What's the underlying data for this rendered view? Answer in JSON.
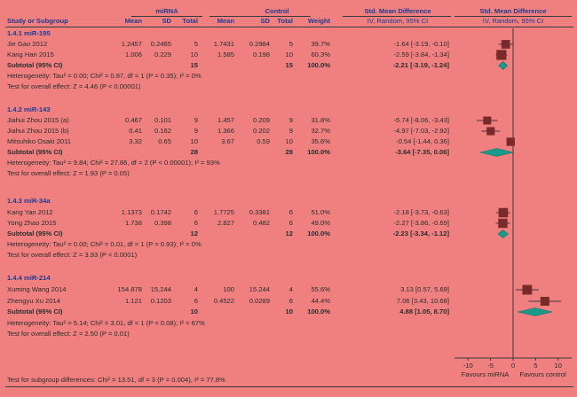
{
  "headers": {
    "group_mirna": "miRNA",
    "group_control": "Control",
    "smd_numeric": "Std. Mean Difference",
    "smd_graph": "Std. Mean Difference",
    "study": "Study or Subgroup",
    "mean1": "Mean",
    "sd1": "SD",
    "total1": "Total",
    "mean2": "Mean",
    "sd2": "SD",
    "total2": "Total",
    "weight": "Weight",
    "method_numeric": "IV, Random, 95% CI",
    "method_graph": "IV, Random, 95% CI"
  },
  "subgroups": [
    {
      "title": "1.4.1 miR-195",
      "studies": [
        {
          "name": "Jie Gao 2012",
          "mean1": "1.2457",
          "sd1": "0.2465",
          "total1": "5",
          "mean2": "1.7431",
          "sd2": "0.2984",
          "total2": "5",
          "weight": "39.7%",
          "ci": "-1.64 [-3.19, -0.10]"
        },
        {
          "name": "Kang Han 2015",
          "mean1": "1.006",
          "sd1": "0.229",
          "total1": "10",
          "mean2": "1.585",
          "sd2": "0.198",
          "total2": "10",
          "weight": "60.3%",
          "ci": "-2.59 [-3.84, -1.34]"
        }
      ],
      "subtotal": {
        "label": "Subtotal (95% CI)",
        "total1": "15",
        "total2": "15",
        "weight": "100.0%",
        "ci": "-2.21 [-3.19, -1.24]"
      },
      "heterogeneity": "Heterogeneity: Tau² = 0.00; Chi² = 0.87, df = 1 (P = 0.35); I² = 0%",
      "overall": "Test for overall effect: Z = 4.46 (P < 0.00001)"
    },
    {
      "title": "1.4.2 miR-143",
      "studies": [
        {
          "name": "Jiahui Zhou 2015 (a)",
          "mean1": "0.467",
          "sd1": "0.101",
          "total1": "9",
          "mean2": "1.457",
          "sd2": "0.209",
          "total2": "9",
          "weight": "31.8%",
          "ci": "-5.74 [-8.06, -3.43]"
        },
        {
          "name": "Jiahui Zhou 2015 (b)",
          "mean1": "0.41",
          "sd1": "0.162",
          "total1": "9",
          "mean2": "1.366",
          "sd2": "0.202",
          "total2": "9",
          "weight": "32.7%",
          "ci": "-4.97 [-7.03, -2.92]"
        },
        {
          "name": "Mitsuhiko Osaki 2011",
          "mean1": "3.32",
          "sd1": "0.65",
          "total1": "10",
          "mean2": "3.67",
          "sd2": "0.59",
          "total2": "10",
          "weight": "35.6%",
          "ci": "-0.54 [-1.44, 0.36]"
        }
      ],
      "subtotal": {
        "label": "Subtotal (95% CI)",
        "total1": "28",
        "total2": "28",
        "weight": "100.0%",
        "ci": "-3.64 [-7.35, 0.06]"
      },
      "heterogeneity": "Heterogeneity: Tau² = 9.84; Chi² = 27.86, df = 2 (P < 0.00001); I² = 93%",
      "overall": "Test for overall effect: Z = 1.93 (P = 0.05)"
    },
    {
      "title": "1.4.3 miR-34a",
      "studies": [
        {
          "name": "Kang Yan 2012",
          "mean1": "1.1373",
          "sd1": "0.1742",
          "total1": "6",
          "mean2": "1.7725",
          "sd2": "0.3381",
          "total2": "6",
          "weight": "51.0%",
          "ci": "-2.18 [-3.73, -0.63]"
        },
        {
          "name": "Yong Zhao 2015",
          "mean1": "1.738",
          "sd1": "0.398",
          "total1": "6",
          "mean2": "2.827",
          "sd2": "0.482",
          "total2": "6",
          "weight": "49.0%",
          "ci": "-2.27 [-3.86, -0.69]"
        }
      ],
      "subtotal": {
        "label": "Subtotal (95% CI)",
        "total1": "12",
        "total2": "12",
        "weight": "100.0%",
        "ci": "-2.23 [-3.34, -1.12]"
      },
      "heterogeneity": "Heterogeneity: Tau² = 0.00; Chi² = 0.01, df = 1 (P = 0.93); I² = 0%",
      "overall": "Test for overall effect: Z = 3.93 (P < 0.0001)"
    },
    {
      "title": "1.4.4 miR-214",
      "studies": [
        {
          "name": "Xuming Wang 2014",
          "mean1": "154.878",
          "sd1": "15.244",
          "total1": "4",
          "mean2": "100",
          "sd2": "15.244",
          "total2": "4",
          "weight": "55.6%",
          "ci": "3.13 [0.57, 5.69]"
        },
        {
          "name": "Zhengyu Xu 2014",
          "mean1": "1.121",
          "sd1": "0.1203",
          "total1": "6",
          "mean2": "0.4522",
          "sd2": "0.0289",
          "total2": "6",
          "weight": "44.4%",
          "ci": "7.06 [3.43, 10.68]"
        }
      ],
      "subtotal": {
        "label": "Subtotal (95% CI)",
        "total1": "10",
        "total2": "10",
        "weight": "100.0%",
        "ci": "4.88 [1.05, 8.70]"
      },
      "heterogeneity": "Heterogeneity: Tau² = 5.14; Chi² = 3.01, df = 1 (P = 0.08); I² = 67%",
      "overall": "Test for overall effect: Z = 2.50 (P = 0.01)"
    }
  ],
  "footer": "Test for subgroup differences: Chi² = 13.51, df = 3 (P = 0.004), I² = 77.8%",
  "chart_data": {
    "type": "forest",
    "xlim": [
      -13,
      13
    ],
    "xticks": [
      -10,
      -5,
      0,
      5,
      10
    ],
    "xtick_labels": [
      "-10",
      "-5",
      "0",
      "5",
      "10"
    ],
    "axis_left_label": "Favours miRNA",
    "axis_right_label": "Favours control",
    "colors": {
      "study_marker": "#7a2a2a",
      "diamond": "#1a9a8a",
      "line": "#3a3a3a"
    },
    "studies": [
      {
        "name": "Jie Gao 2012",
        "est": -1.64,
        "lo": -3.19,
        "hi": -0.1,
        "weight": 39.7
      },
      {
        "name": "Kang Han 2015",
        "est": -2.59,
        "lo": -3.84,
        "hi": -1.34,
        "weight": 60.3
      },
      {
        "name": "Jiahui Zhou 2015 (a)",
        "est": -5.74,
        "lo": -8.06,
        "hi": -3.43,
        "weight": 31.8
      },
      {
        "name": "Jiahui Zhou 2015 (b)",
        "est": -4.97,
        "lo": -7.03,
        "hi": -2.92,
        "weight": 32.7
      },
      {
        "name": "Mitsuhiko Osaki 2011",
        "est": -0.54,
        "lo": -1.44,
        "hi": 0.36,
        "weight": 35.6
      },
      {
        "name": "Kang Yan 2012",
        "est": -2.18,
        "lo": -3.73,
        "hi": -0.63,
        "weight": 51.0
      },
      {
        "name": "Yong Zhao 2015",
        "est": -2.27,
        "lo": -3.86,
        "hi": -0.69,
        "weight": 49.0
      },
      {
        "name": "Xuming Wang 2014",
        "est": 3.13,
        "lo": 0.57,
        "hi": 5.69,
        "weight": 55.6
      },
      {
        "name": "Zhengyu Xu 2014",
        "est": 7.06,
        "lo": 3.43,
        "hi": 10.68,
        "weight": 44.4
      }
    ],
    "subtotals": [
      {
        "name": "1.4.1 miR-195",
        "est": -2.21,
        "lo": -3.19,
        "hi": -1.24
      },
      {
        "name": "1.4.2 miR-143",
        "est": -3.64,
        "lo": -7.35,
        "hi": 0.06
      },
      {
        "name": "1.4.3 miR-34a",
        "est": -2.23,
        "lo": -3.34,
        "hi": -1.12
      },
      {
        "name": "1.4.4 miR-214",
        "est": 4.88,
        "lo": 1.05,
        "hi": 8.7
      }
    ]
  }
}
